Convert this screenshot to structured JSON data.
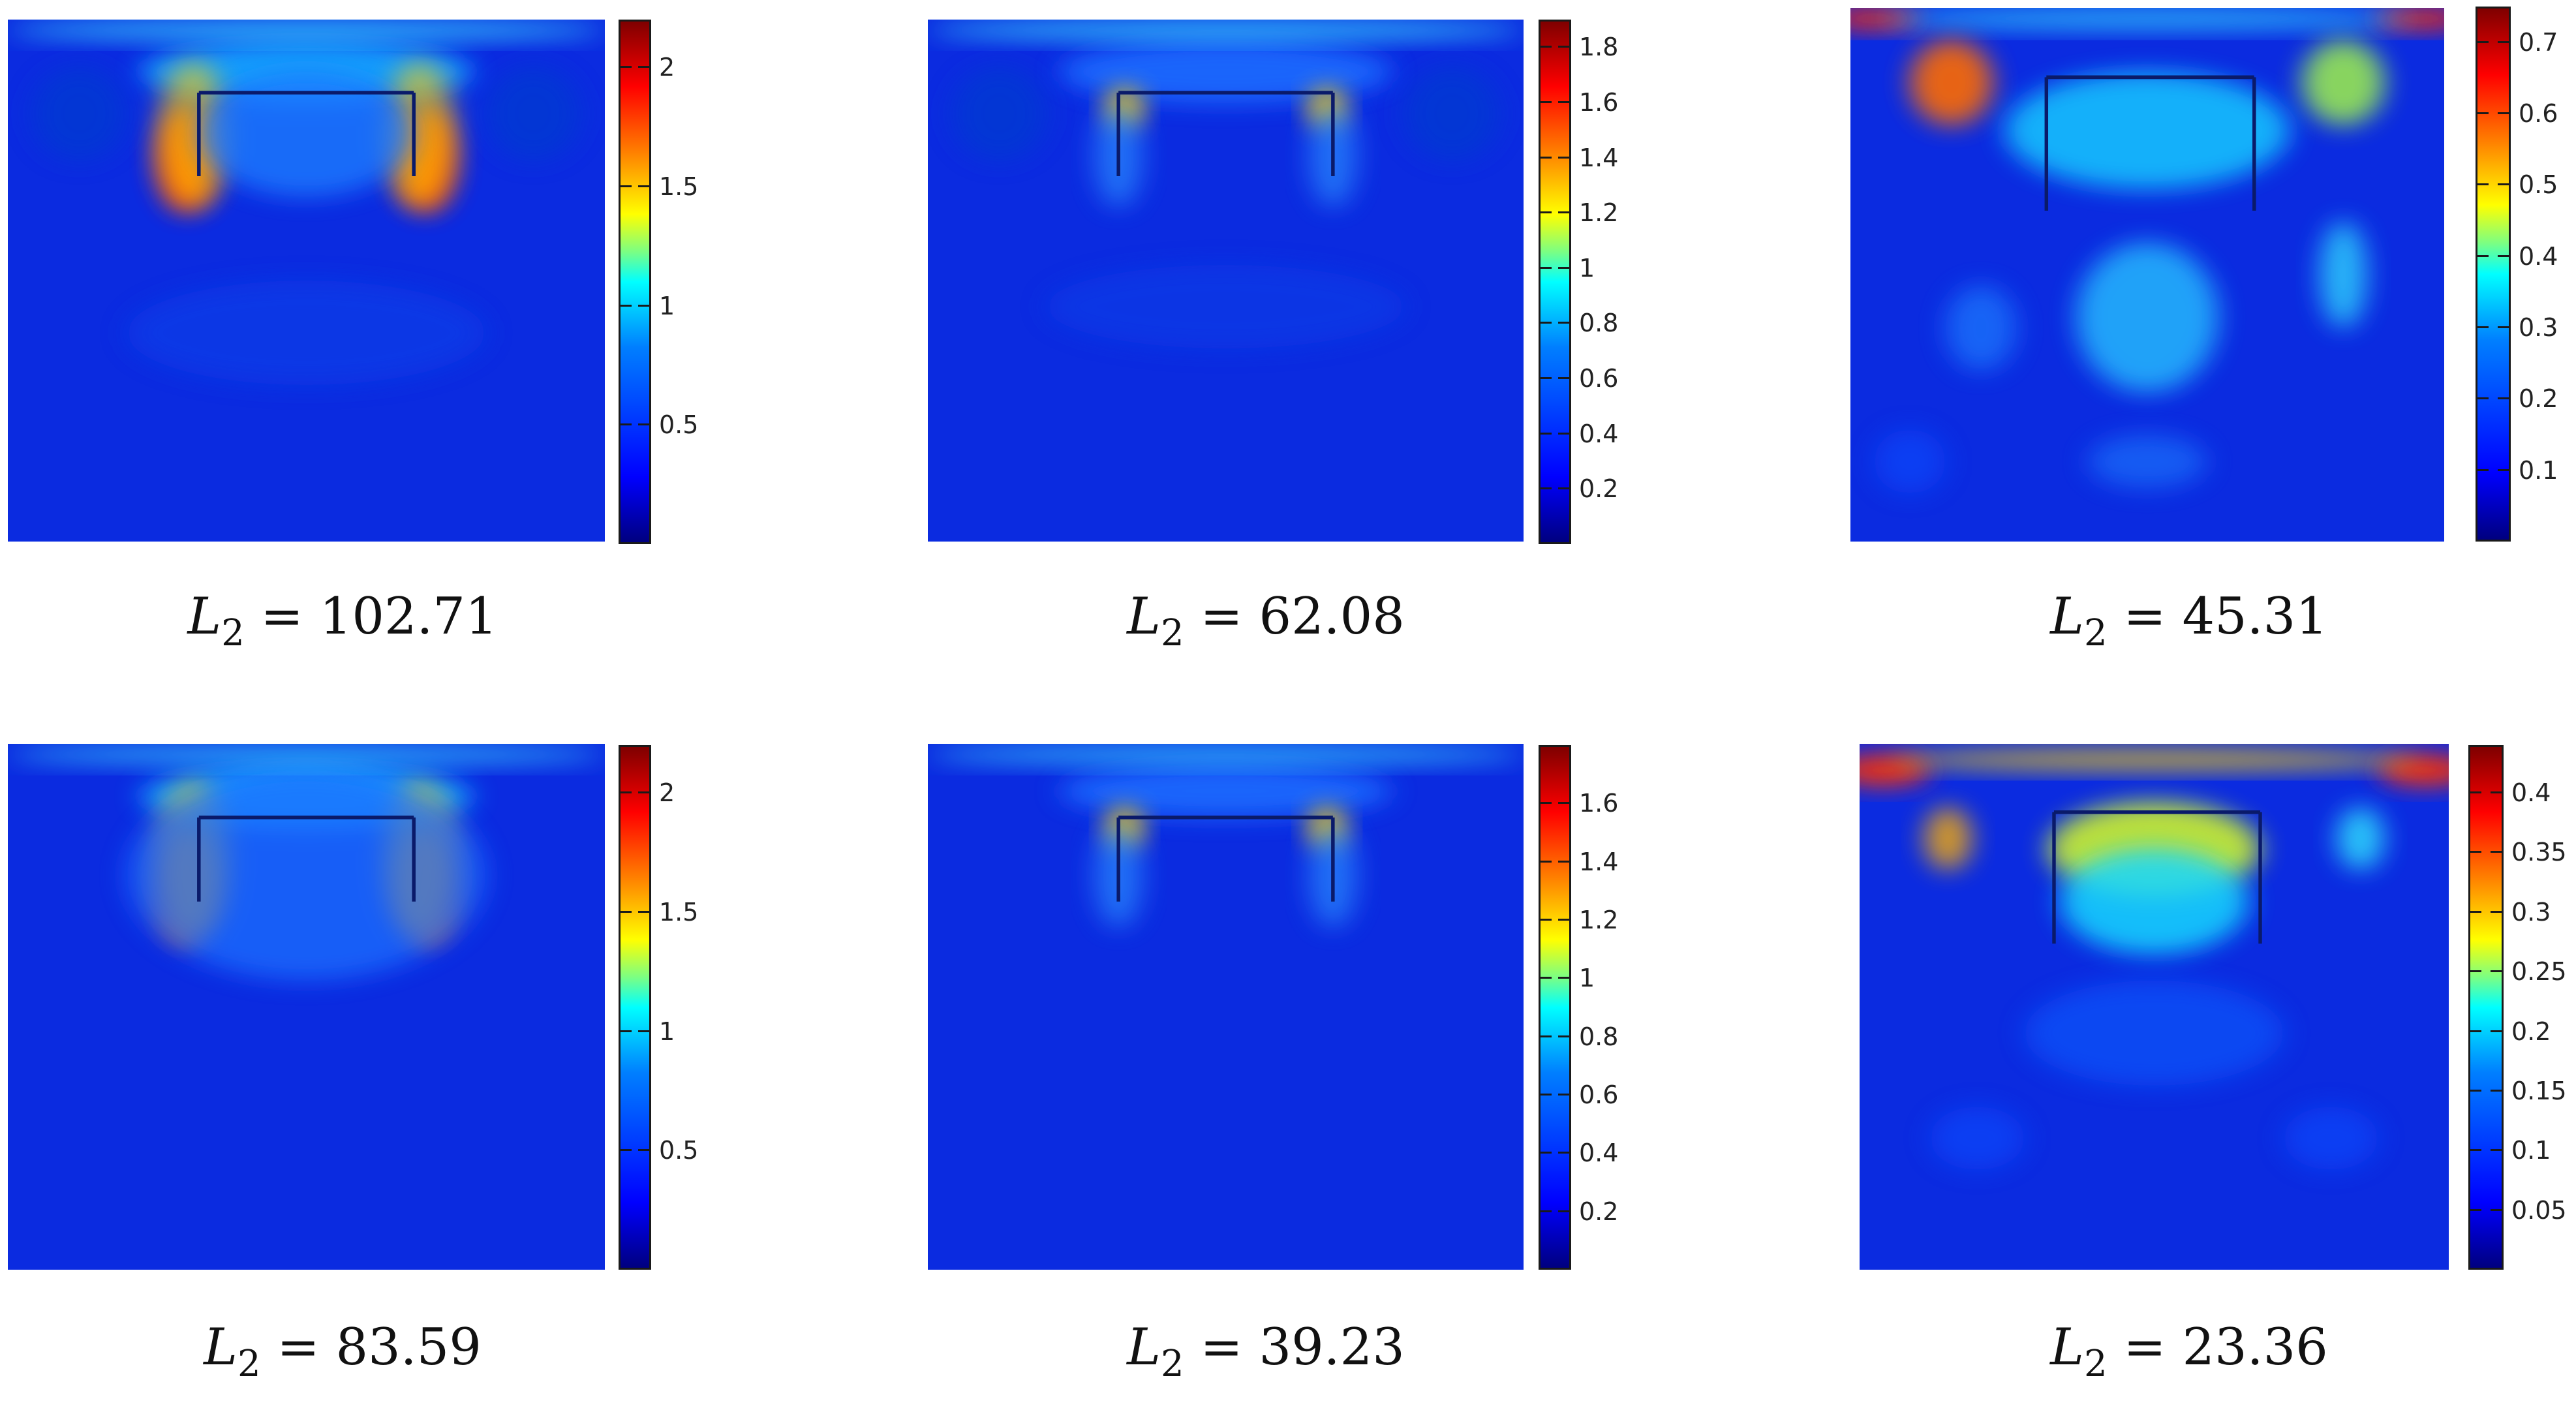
{
  "chart_data": [
    {
      "type": "heatmap",
      "panel": "top-left",
      "caption": {
        "var": "L",
        "sub": "2",
        "eq": "=",
        "value": "102.71"
      },
      "colormap": "jet",
      "colorbar": {
        "range": [
          0,
          2.2
        ],
        "ticks": [
          0.5,
          1,
          1.5,
          2
        ],
        "labels": [
          "0.5",
          "1",
          "1.5",
          "2"
        ]
      }
    },
    {
      "type": "heatmap",
      "panel": "top-middle",
      "caption": {
        "var": "L",
        "sub": "2",
        "eq": "=",
        "value": "62.08"
      },
      "colormap": "jet",
      "colorbar": {
        "range": [
          0,
          1.9
        ],
        "ticks": [
          0.2,
          0.4,
          0.6,
          0.8,
          1,
          1.2,
          1.4,
          1.6,
          1.8
        ],
        "labels": [
          "0.2",
          "0.4",
          "0.6",
          "0.8",
          "1",
          "1.2",
          "1.4",
          "1.6",
          "1.8"
        ]
      }
    },
    {
      "type": "heatmap",
      "panel": "top-right",
      "caption": {
        "var": "L",
        "sub": "2",
        "eq": "=",
        "value": "45.31"
      },
      "colormap": "jet",
      "colorbar": {
        "range": [
          0,
          0.75
        ],
        "ticks": [
          0.1,
          0.2,
          0.3,
          0.4,
          0.5,
          0.6,
          0.7
        ],
        "labels": [
          "0.1",
          "0.2",
          "0.3",
          "0.4",
          "0.5",
          "0.6",
          "0.7"
        ]
      }
    },
    {
      "type": "heatmap",
      "panel": "bottom-left",
      "caption": {
        "var": "L",
        "sub": "2",
        "eq": "=",
        "value": "83.59"
      },
      "colormap": "jet",
      "colorbar": {
        "range": [
          0,
          2.2
        ],
        "ticks": [
          0.5,
          1,
          1.5,
          2
        ],
        "labels": [
          "0.5",
          "1",
          "1.5",
          "2"
        ]
      }
    },
    {
      "type": "heatmap",
      "panel": "bottom-middle",
      "caption": {
        "var": "L",
        "sub": "2",
        "eq": "=",
        "value": "39.23"
      },
      "colormap": "jet",
      "colorbar": {
        "range": [
          0,
          1.8
        ],
        "ticks": [
          0.2,
          0.4,
          0.6,
          0.8,
          1,
          1.2,
          1.4,
          1.6
        ],
        "labels": [
          "0.2",
          "0.4",
          "0.6",
          "0.8",
          "1",
          "1.2",
          "1.4",
          "1.6"
        ]
      }
    },
    {
      "type": "heatmap",
      "panel": "bottom-right",
      "caption": {
        "var": "L",
        "sub": "2",
        "eq": "=",
        "value": "23.36"
      },
      "colormap": "jet",
      "colorbar": {
        "range": [
          0,
          0.44
        ],
        "ticks": [
          0.05,
          0.1,
          0.15,
          0.2,
          0.25,
          0.3,
          0.35,
          0.4
        ],
        "labels": [
          "0.05",
          "0.1",
          "0.15",
          "0.2",
          "0.25",
          "0.3",
          "0.35",
          "0.4"
        ]
      }
    }
  ]
}
